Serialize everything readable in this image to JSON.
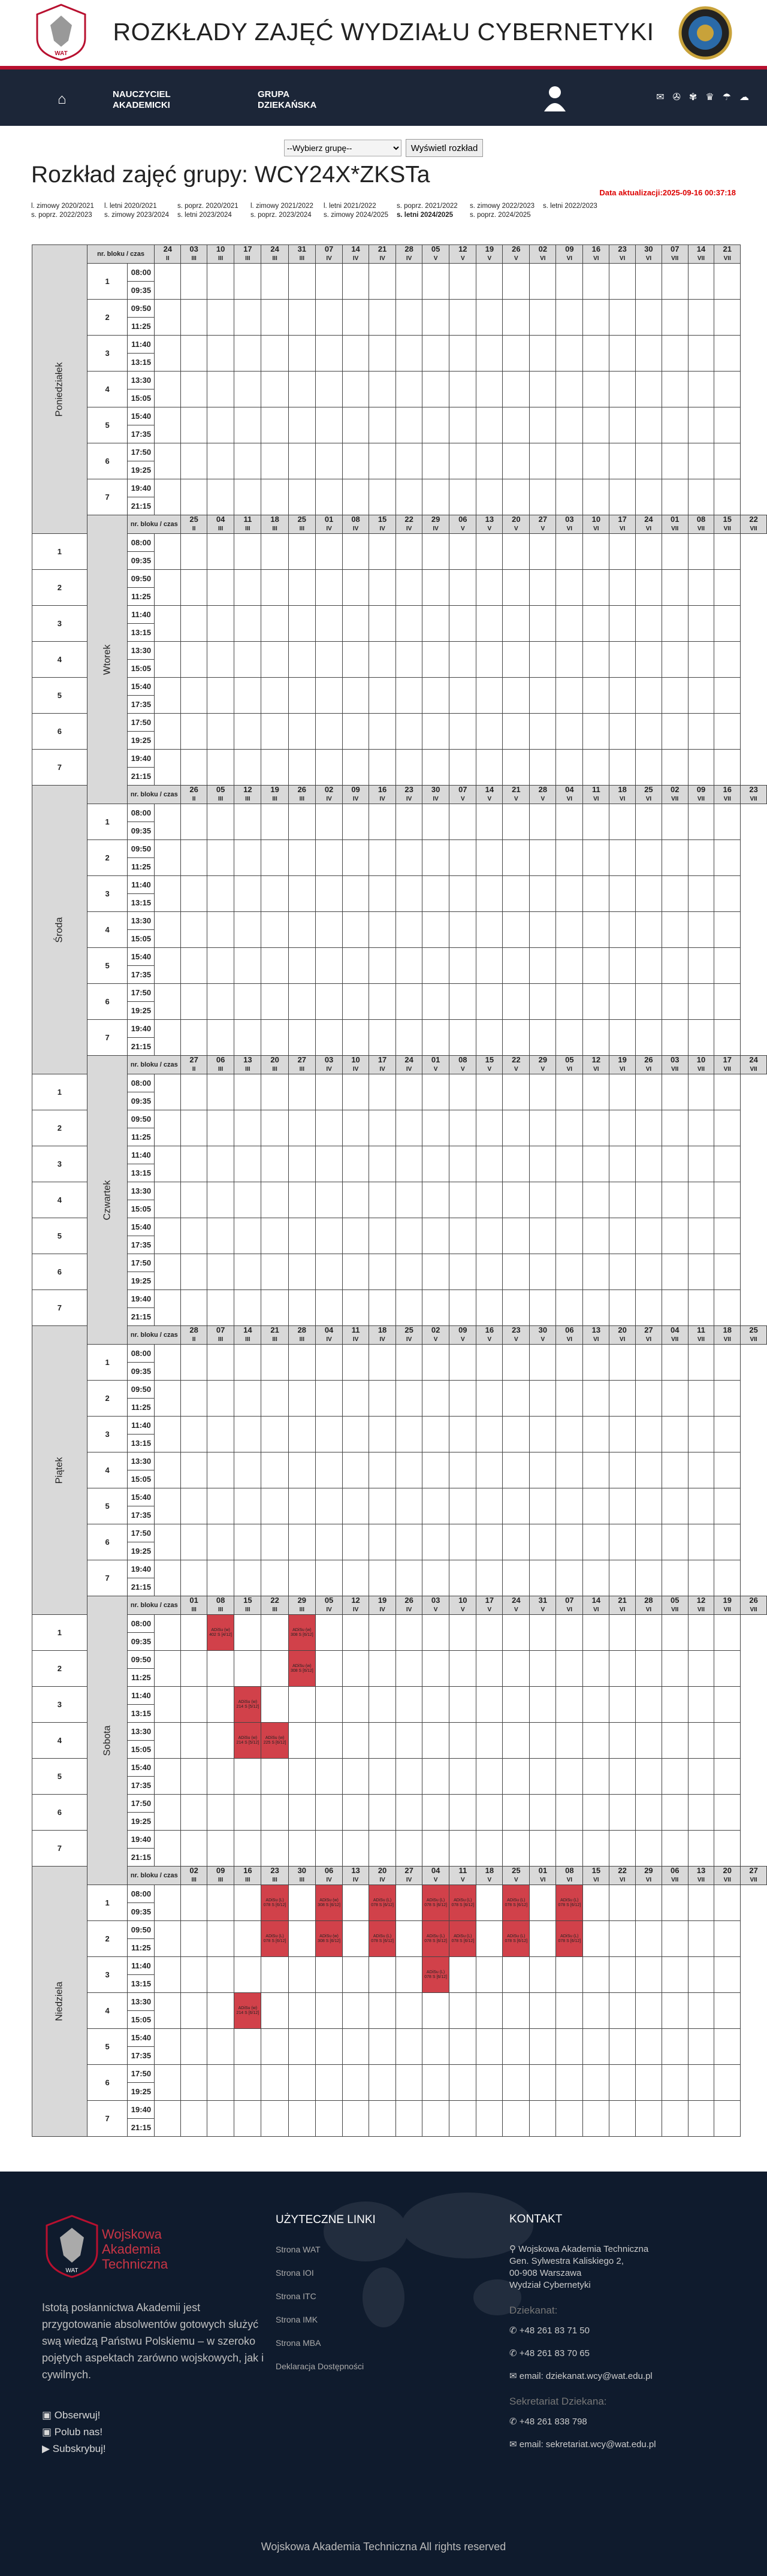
{
  "header": {
    "title": "ROZKŁADY ZAJĘĆ WYDZIAŁU CYBERNETYKI",
    "logo_left": "wat-eagle-logo",
    "logo_right": "faculty-seal-logo"
  },
  "nav": {
    "home_icon": "home-icon",
    "item1_l1": "NAUCZYCIEL",
    "item1_l2": "AKADEMICKI",
    "item2_l1": "GRUPA",
    "item2_l2": "DZIEKAŃSKA",
    "icons": [
      "person-icon",
      "mail-icon",
      "usos-icon",
      "eagle-icon",
      "graduate-icon",
      "moodle-icon",
      "cloud-icon"
    ]
  },
  "select": {
    "value": "--Wybierz grupę--",
    "button": "Wyświetl rozkład"
  },
  "title": "Rozkład zajęć grupy: WCY24X*ZKSTa",
  "updated": "Data aktualizacji:2025-09-16 00:37:18",
  "semesters_row1": [
    "l. zimowy 2020/2021",
    "l. letni 2020/2021",
    "s. poprz. 2020/2021",
    "l. zimowy 2021/2022",
    "l. letni 2021/2022",
    "s. poprz. 2021/2022",
    "s. zimowy 2022/2023",
    "s. letni 2022/2023"
  ],
  "semesters_row2": [
    "s. poprz. 2022/2023",
    "s. zimowy 2023/2024",
    "s. letni 2023/2024",
    "s. poprz. 2023/2024",
    "s. zimowy 2024/2025",
    "s. letni 2024/2025",
    "s. poprz. 2024/2025"
  ],
  "header_cell": "nr. bloku / czas",
  "blocks": [
    "1",
    "2",
    "3",
    "4",
    "5",
    "6",
    "7"
  ],
  "times": [
    [
      "08:00",
      "09:35"
    ],
    [
      "09:50",
      "11:25"
    ],
    [
      "11:40",
      "13:15"
    ],
    [
      "13:30",
      "15:05"
    ],
    [
      "15:40",
      "17:35"
    ],
    [
      "17:50",
      "19:25"
    ],
    [
      "19:40",
      "21:15"
    ]
  ],
  "days": [
    {
      "name": "Poniedziałek",
      "dates": [
        [
          "24",
          "II"
        ],
        [
          "03",
          "III"
        ],
        [
          "10",
          "III"
        ],
        [
          "17",
          "III"
        ],
        [
          "24",
          "III"
        ],
        [
          "31",
          "III"
        ],
        [
          "07",
          "IV"
        ],
        [
          "14",
          "IV"
        ],
        [
          "21",
          "IV"
        ],
        [
          "28",
          "IV"
        ],
        [
          "05",
          "V"
        ],
        [
          "12",
          "V"
        ],
        [
          "19",
          "V"
        ],
        [
          "26",
          "V"
        ],
        [
          "02",
          "VI"
        ],
        [
          "09",
          "VI"
        ],
        [
          "16",
          "VI"
        ],
        [
          "23",
          "VI"
        ],
        [
          "30",
          "VI"
        ],
        [
          "07",
          "VII"
        ],
        [
          "14",
          "VII"
        ],
        [
          "21",
          "VII"
        ]
      ]
    },
    {
      "name": "Wtorek",
      "dates": [
        [
          "25",
          "II"
        ],
        [
          "04",
          "III"
        ],
        [
          "11",
          "III"
        ],
        [
          "18",
          "III"
        ],
        [
          "25",
          "III"
        ],
        [
          "01",
          "IV"
        ],
        [
          "08",
          "IV"
        ],
        [
          "15",
          "IV"
        ],
        [
          "22",
          "IV"
        ],
        [
          "29",
          "IV"
        ],
        [
          "06",
          "V"
        ],
        [
          "13",
          "V"
        ],
        [
          "20",
          "V"
        ],
        [
          "27",
          "V"
        ],
        [
          "03",
          "VI"
        ],
        [
          "10",
          "VI"
        ],
        [
          "17",
          "VI"
        ],
        [
          "24",
          "VI"
        ],
        [
          "01",
          "VII"
        ],
        [
          "08",
          "VII"
        ],
        [
          "15",
          "VII"
        ],
        [
          "22",
          "VII"
        ]
      ]
    },
    {
      "name": "Środa",
      "dates": [
        [
          "26",
          "II"
        ],
        [
          "05",
          "III"
        ],
        [
          "12",
          "III"
        ],
        [
          "19",
          "III"
        ],
        [
          "26",
          "III"
        ],
        [
          "02",
          "IV"
        ],
        [
          "09",
          "IV"
        ],
        [
          "16",
          "IV"
        ],
        [
          "23",
          "IV"
        ],
        [
          "30",
          "IV"
        ],
        [
          "07",
          "V"
        ],
        [
          "14",
          "V"
        ],
        [
          "21",
          "V"
        ],
        [
          "28",
          "V"
        ],
        [
          "04",
          "VI"
        ],
        [
          "11",
          "VI"
        ],
        [
          "18",
          "VI"
        ],
        [
          "25",
          "VI"
        ],
        [
          "02",
          "VII"
        ],
        [
          "09",
          "VII"
        ],
        [
          "16",
          "VII"
        ],
        [
          "23",
          "VII"
        ]
      ]
    },
    {
      "name": "Czwartek",
      "dates": [
        [
          "27",
          "II"
        ],
        [
          "06",
          "III"
        ],
        [
          "13",
          "III"
        ],
        [
          "20",
          "III"
        ],
        [
          "27",
          "III"
        ],
        [
          "03",
          "IV"
        ],
        [
          "10",
          "IV"
        ],
        [
          "17",
          "IV"
        ],
        [
          "24",
          "IV"
        ],
        [
          "01",
          "V"
        ],
        [
          "08",
          "V"
        ],
        [
          "15",
          "V"
        ],
        [
          "22",
          "V"
        ],
        [
          "29",
          "V"
        ],
        [
          "05",
          "VI"
        ],
        [
          "12",
          "VI"
        ],
        [
          "19",
          "VI"
        ],
        [
          "26",
          "VI"
        ],
        [
          "03",
          "VII"
        ],
        [
          "10",
          "VII"
        ],
        [
          "17",
          "VII"
        ],
        [
          "24",
          "VII"
        ]
      ]
    },
    {
      "name": "Piątek",
      "dates": [
        [
          "28",
          "II"
        ],
        [
          "07",
          "III"
        ],
        [
          "14",
          "III"
        ],
        [
          "21",
          "III"
        ],
        [
          "28",
          "III"
        ],
        [
          "04",
          "IV"
        ],
        [
          "11",
          "IV"
        ],
        [
          "18",
          "IV"
        ],
        [
          "25",
          "IV"
        ],
        [
          "02",
          "V"
        ],
        [
          "09",
          "V"
        ],
        [
          "16",
          "V"
        ],
        [
          "23",
          "V"
        ],
        [
          "30",
          "V"
        ],
        [
          "06",
          "VI"
        ],
        [
          "13",
          "VI"
        ],
        [
          "20",
          "VI"
        ],
        [
          "27",
          "VI"
        ],
        [
          "04",
          "VII"
        ],
        [
          "11",
          "VII"
        ],
        [
          "18",
          "VII"
        ],
        [
          "25",
          "VII"
        ]
      ]
    },
    {
      "name": "Sobota",
      "dates": [
        [
          "01",
          "III"
        ],
        [
          "08",
          "III"
        ],
        [
          "15",
          "III"
        ],
        [
          "22",
          "III"
        ],
        [
          "29",
          "III"
        ],
        [
          "05",
          "IV"
        ],
        [
          "12",
          "IV"
        ],
        [
          "19",
          "IV"
        ],
        [
          "26",
          "IV"
        ],
        [
          "03",
          "V"
        ],
        [
          "10",
          "V"
        ],
        [
          "17",
          "V"
        ],
        [
          "24",
          "V"
        ],
        [
          "31",
          "V"
        ],
        [
          "07",
          "VI"
        ],
        [
          "14",
          "VI"
        ],
        [
          "21",
          "VI"
        ],
        [
          "28",
          "VI"
        ],
        [
          "05",
          "VII"
        ],
        [
          "12",
          "VII"
        ],
        [
          "19",
          "VII"
        ],
        [
          "26",
          "VII"
        ]
      ],
      "classes": [
        {
          "block": 0,
          "col": 2,
          "text": "ADiSu (w) 402 S [4/12]"
        },
        {
          "block": 0,
          "col": 5,
          "text": "ADiSu (w) 308 S [6/12]"
        },
        {
          "block": 1,
          "col": 5,
          "text": "ADiSu (w) 308 S [6/12]"
        },
        {
          "block": 2,
          "col": 3,
          "text": "ADiSu (w) 214 S [5/12]"
        },
        {
          "block": 3,
          "col": 3,
          "text": "ADiSu (w) 214 S [5/12]"
        },
        {
          "block": 3,
          "col": 4,
          "text": "ADiSu (w) 225 S [6/12]"
        }
      ]
    },
    {
      "name": "Niedziela",
      "dates": [
        [
          "02",
          "III"
        ],
        [
          "09",
          "III"
        ],
        [
          "16",
          "III"
        ],
        [
          "23",
          "III"
        ],
        [
          "30",
          "III"
        ],
        [
          "06",
          "IV"
        ],
        [
          "13",
          "IV"
        ],
        [
          "20",
          "IV"
        ],
        [
          "27",
          "IV"
        ],
        [
          "04",
          "V"
        ],
        [
          "11",
          "V"
        ],
        [
          "18",
          "V"
        ],
        [
          "25",
          "V"
        ],
        [
          "01",
          "VI"
        ],
        [
          "08",
          "VI"
        ],
        [
          "15",
          "VI"
        ],
        [
          "22",
          "VI"
        ],
        [
          "29",
          "VI"
        ],
        [
          "06",
          "VII"
        ],
        [
          "13",
          "VII"
        ],
        [
          "20",
          "VII"
        ],
        [
          "27",
          "VII"
        ]
      ],
      "classes": [
        {
          "block": 0,
          "col": 4,
          "text": "ADiSu (L) 078 S [6/12]"
        },
        {
          "block": 0,
          "col": 6,
          "text": "ADiSu (w) 308 S [6/12]"
        },
        {
          "block": 0,
          "col": 8,
          "text": "ADiSu (L) 078 S [6/12]"
        },
        {
          "block": 0,
          "col": 10,
          "text": "ADiSu (L) 078 S [6/12]"
        },
        {
          "block": 0,
          "col": 11,
          "text": "ADiSu (L) 078 S [6/12]"
        },
        {
          "block": 0,
          "col": 13,
          "text": "ADiSu (L) 078 S [6/12]"
        },
        {
          "block": 0,
          "col": 15,
          "text": "ADiSu (L) 078 S [6/12]"
        },
        {
          "block": 1,
          "col": 4,
          "text": "ADiSu (L) 078 S [6/12]"
        },
        {
          "block": 1,
          "col": 6,
          "text": "ADiSu (w) 308 S [6/12]"
        },
        {
          "block": 1,
          "col": 8,
          "text": "ADiSu (L) 078 S [6/12]"
        },
        {
          "block": 1,
          "col": 10,
          "text": "ADiSu (L) 078 S [6/12]"
        },
        {
          "block": 1,
          "col": 11,
          "text": "ADiSu (L) 078 S [6/12]"
        },
        {
          "block": 1,
          "col": 13,
          "text": "ADiSu (L) 078 S [6/12]"
        },
        {
          "block": 1,
          "col": 15,
          "text": "ADiSu (L) 078 S [6/12]"
        },
        {
          "block": 2,
          "col": 10,
          "text": "ADiSu (L) 078 S [6/12]"
        },
        {
          "block": 3,
          "col": 3,
          "text": "ADiSu (w) 214 S [6/12]"
        }
      ]
    }
  ],
  "footer": {
    "brand": "Wojskowa Akademia Techniczna",
    "desc": "Istotą posłannictwa Akademii jest przygotowanie absolwentów gotowych służyć swą wiedzą Państwu Polskiemu – w szeroko pojętych aspektach zarówno wojskowych, jak i cywilnych.",
    "social": [
      "Obserwuj!",
      "Polub nas!",
      "Subskrybuj!"
    ],
    "links_title": "UŻYTECZNE LINKI",
    "links": [
      "Strona WAT",
      "Strona IOI",
      "Strona ITC",
      "Strona IMK",
      "Strona MBA",
      "Deklaracja Dostępności"
    ],
    "contact_title": "KONTAKT",
    "address": [
      "Wojskowa Akademia Techniczna",
      "Gen. Sylwestra Kaliskiego 2,",
      "00-908 Warszawa",
      "Wydział Cybernetyki"
    ],
    "dziekanat": "Dziekanat:",
    "phones": [
      "+48 261 83 71 50",
      "+48 261 83 70 65"
    ],
    "email1": "email: dziekanat.wcy@wat.edu.pl",
    "sekretariat": "Sekretariat Dziekana:",
    "phone3": "+48 261 838 798",
    "email2": "email: sekretariat.wcy@wat.edu.pl",
    "copyright": "Wojskowa Akademia Techniczna All rights reserved"
  }
}
